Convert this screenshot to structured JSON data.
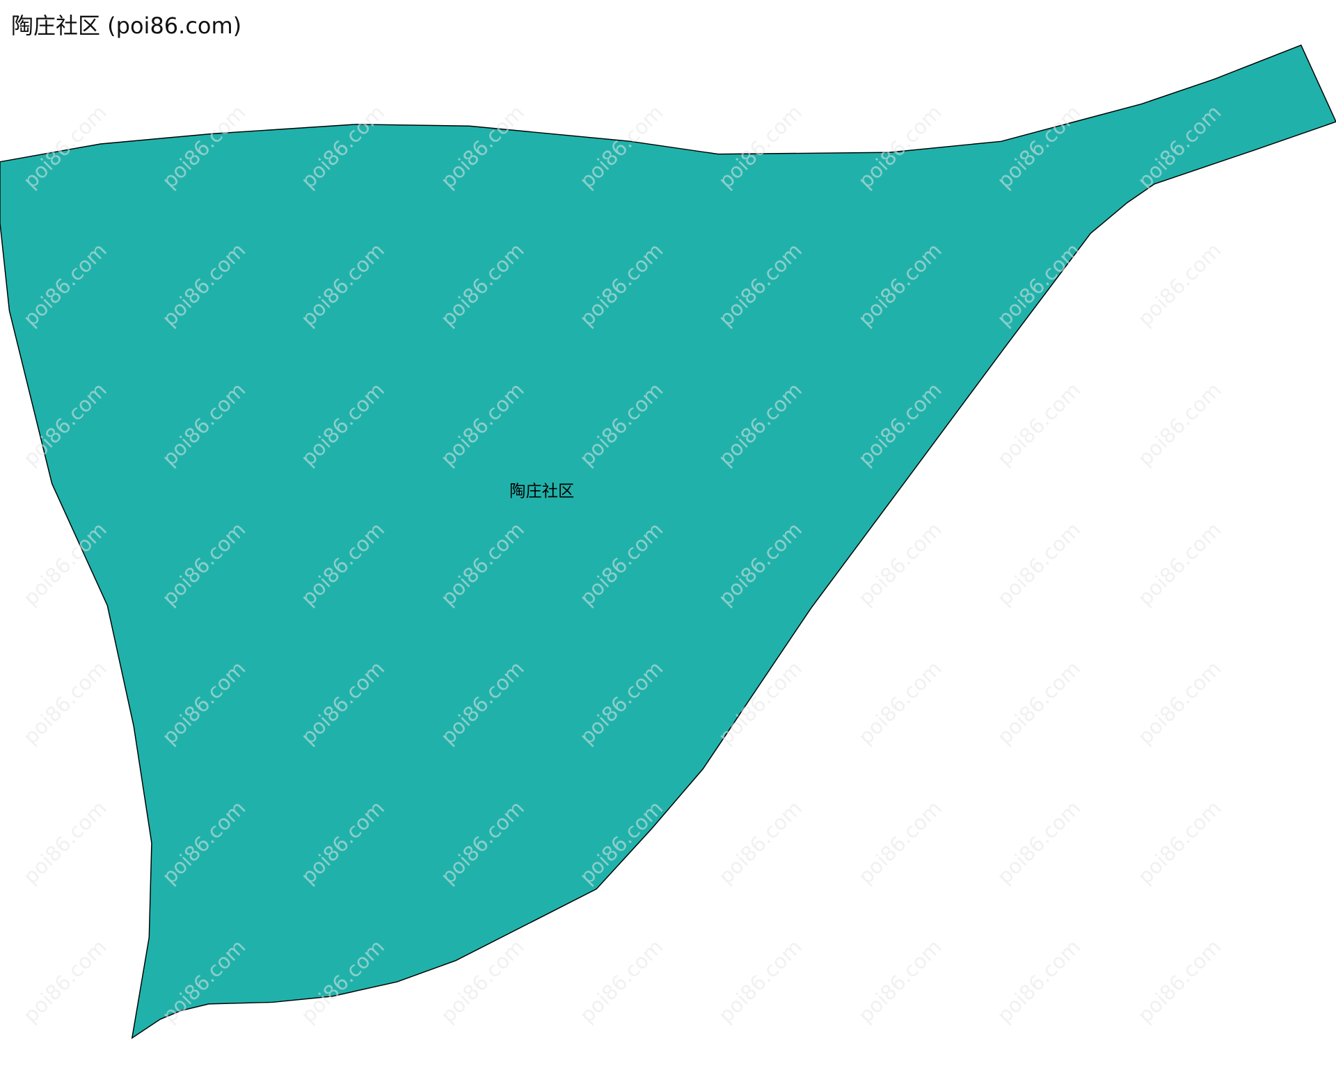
{
  "title": "陶庄社区 (poi86.com)",
  "region": {
    "name": "陶庄社区",
    "fill_color": "#20b2aa",
    "stroke_color": "#000000"
  },
  "watermark": {
    "text": "poi86.com",
    "color": "#e6e6e6"
  }
}
